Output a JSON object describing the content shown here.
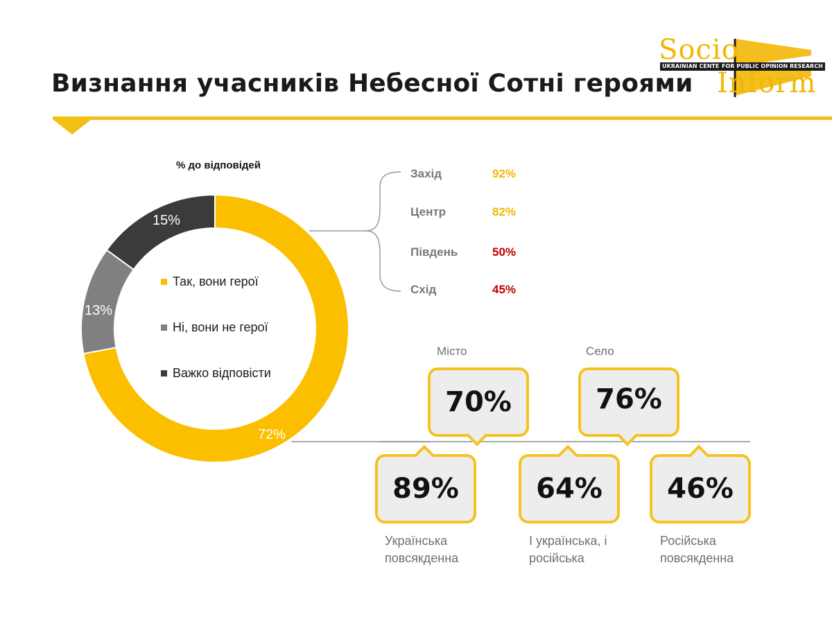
{
  "title": "Визнання учасників Небесної Сотні героями",
  "logo": {
    "word_top": "Socio",
    "word_bottom": "Inform",
    "band_left": "UKRAINIAN CENTER",
    "band_right": "FOR PUBLIC OPINION RESEARCH"
  },
  "colors": {
    "accent": "#f2c013",
    "yes": "#fbbf00",
    "no": "#808080",
    "hard": "#3b3b3b",
    "red": "#c00000",
    "bubble_fill": "#ededed",
    "line_gray": "#8a8a8a"
  },
  "chart_data": [
    {
      "type": "pie",
      "variant": "donut",
      "title": "% до відповідей",
      "categories": [
        "Так, вони герої",
        "Ні, вони не герої",
        "Важко відповісти"
      ],
      "values": [
        72,
        13,
        15
      ],
      "labels": [
        "72%",
        "13%",
        "15%"
      ],
      "legend_placement": "center"
    },
    {
      "type": "table",
      "rows": [
        {
          "region": "Захід",
          "value": "92%",
          "color": "#f2b705"
        },
        {
          "region": "Центр",
          "value": "82%",
          "color": "#f2b705"
        },
        {
          "region": "Південь",
          "value": "50%",
          "color": "#c00000"
        },
        {
          "region": "Схід",
          "value": "45%",
          "color": "#c00000"
        }
      ]
    },
    {
      "type": "table",
      "settlement": [
        {
          "label": "Місто",
          "value": "70%"
        },
        {
          "label": "Село",
          "value": "76%"
        }
      ],
      "language": [
        {
          "label": "Українська\nповсякденна",
          "value": "89%"
        },
        {
          "label": "І українська, і\nросійська",
          "value": "64%"
        },
        {
          "label": "Російська\nповсякденна",
          "value": "46%"
        }
      ]
    }
  ]
}
